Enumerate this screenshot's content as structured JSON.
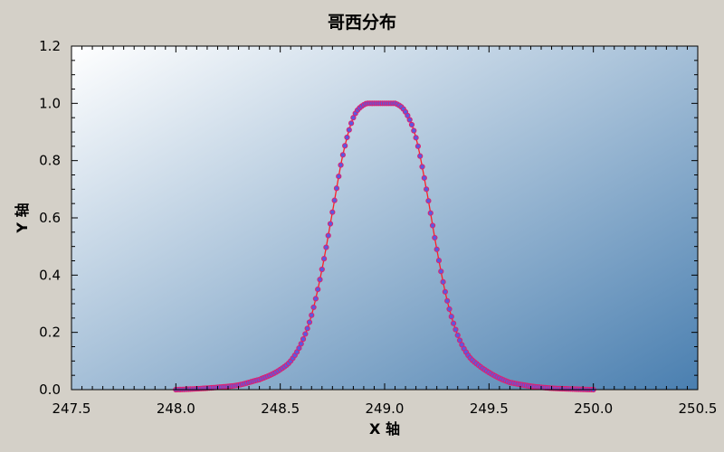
{
  "chart_data": {
    "type": "line",
    "title": "哥西分布",
    "xlabel": "X 轴",
    "ylabel": "Y 轴",
    "xlim": [
      247.5,
      250.5
    ],
    "ylim": [
      0.0,
      1.2
    ],
    "x_ticks": [
      "247.5",
      "248.0",
      "248.5",
      "249.0",
      "249.5",
      "250.0",
      "250.5"
    ],
    "y_ticks": [
      "0.0",
      "0.2",
      "0.4",
      "0.6",
      "0.8",
      "1.0",
      "1.2"
    ],
    "grid": false,
    "legend": "none",
    "series": [
      {
        "x": [
          248.0,
          248.1,
          248.2,
          248.3,
          248.4,
          248.45,
          248.5,
          248.55,
          248.6,
          248.65,
          248.7,
          248.75,
          248.8,
          248.85,
          248.9,
          248.95,
          249.0,
          249.05,
          249.1,
          249.15,
          249.2,
          249.25,
          249.3,
          249.35,
          249.4,
          249.45,
          249.5,
          249.55,
          249.6,
          249.7,
          249.8,
          249.9,
          250.0
        ],
        "values": [
          0.0,
          0.003,
          0.008,
          0.016,
          0.035,
          0.05,
          0.07,
          0.1,
          0.16,
          0.26,
          0.42,
          0.62,
          0.82,
          0.95,
          0.995,
          1.0,
          1.0,
          1.0,
          0.97,
          0.88,
          0.7,
          0.49,
          0.31,
          0.19,
          0.12,
          0.085,
          0.06,
          0.04,
          0.025,
          0.012,
          0.005,
          0.002,
          0.0
        ],
        "line_color": "#ff2020",
        "marker_edge_color": "#e0206e",
        "marker_fill_color": "#5a5ae0"
      }
    ],
    "plot_background_gradient": [
      "#ffffff",
      "#4a7fb0"
    ]
  }
}
